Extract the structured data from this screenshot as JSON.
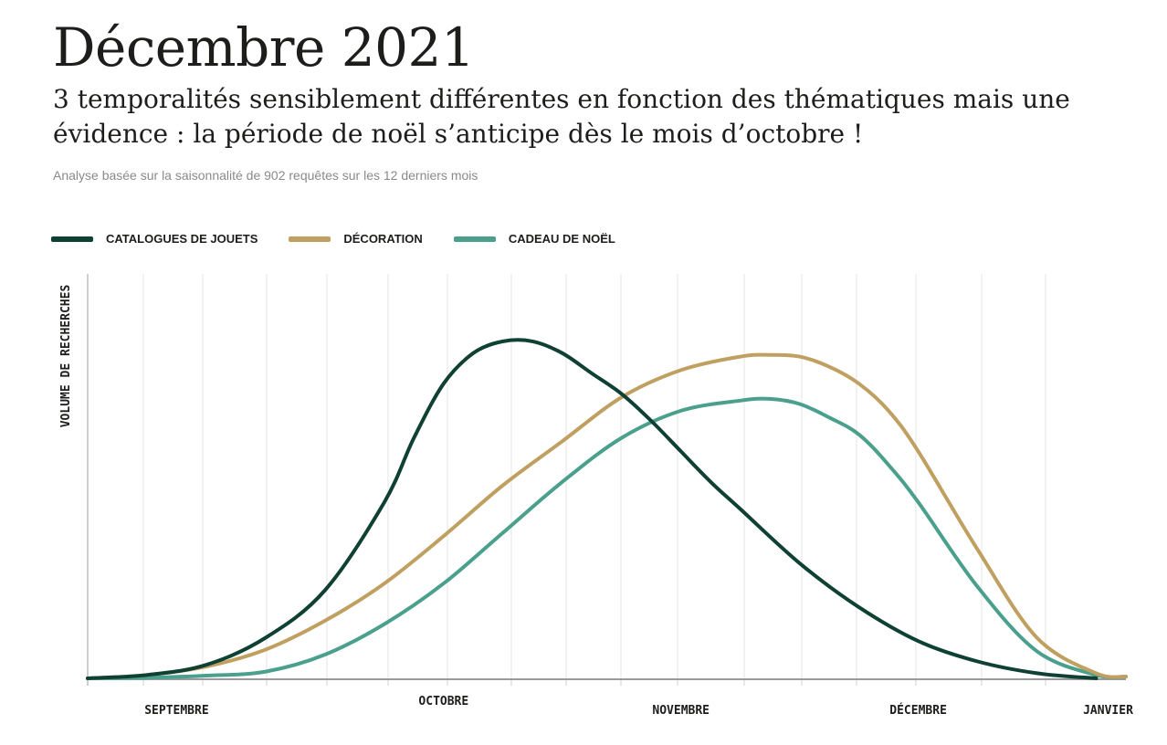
{
  "header": {
    "title": "Décembre 2021",
    "subtitle": "3 temporalités sensiblement différentes en fonction des thématiques mais une évidence : la période de noël s’anticipe dès le mois d’octobre !",
    "source": "Analyse basée sur la saisonnalité de 902 requêtes sur les 12 derniers mois"
  },
  "chart_data": {
    "type": "line",
    "ylabel": "VOLUME DE RECHERCHES",
    "xlabel": "",
    "x_unit": "weeks (0 = early September, 4 weeks per month)",
    "xlim": [
      0,
      17.5
    ],
    "ylim": [
      0,
      100
    ],
    "grid": "vertical",
    "legend_position": "top-left",
    "month_ticks": [
      {
        "label": "SEPTEMBRE",
        "x": 1.5
      },
      {
        "label": "OCTOBRE",
        "x": 6
      },
      {
        "label": "NOVEMBRE",
        "x": 10
      },
      {
        "label": "DÉCEMBRE",
        "x": 14
      },
      {
        "label": "JANVIER",
        "x": 17.2
      }
    ],
    "series": [
      {
        "name": "CATALOGUES DE JOUETS",
        "color": "#0e4034",
        "x": [
          0,
          1,
          2,
          3,
          4,
          5,
          5.5,
          6,
          6.5,
          7,
          7.5,
          8,
          8.5,
          9,
          9.5,
          10,
          10.5,
          11,
          12,
          13,
          14,
          15,
          16,
          17
        ],
        "y": [
          0,
          1,
          4,
          12,
          26,
          52,
          71,
          87,
          96,
          99.5,
          99.5,
          96,
          90,
          84,
          76,
          67,
          58,
          50,
          34,
          21,
          11,
          5,
          1.5,
          0
        ]
      },
      {
        "name": "DÉCORATION",
        "color": "#c0a060",
        "x": [
          0,
          1,
          2,
          3,
          4,
          5,
          6,
          7,
          8,
          9,
          10,
          11,
          11.5,
          12,
          12.5,
          13,
          13.5,
          14,
          15,
          16,
          17,
          17.5
        ],
        "y": [
          0,
          1,
          3.5,
          8.5,
          17,
          28,
          42,
          57,
          70,
          83,
          91,
          95,
          95.5,
          95,
          92,
          87,
          79,
          67,
          38,
          12,
          1.5,
          0.5
        ]
      },
      {
        "name": "CADEAU DE NOËL",
        "color": "#4aa08c",
        "x": [
          0,
          1,
          2,
          3,
          4,
          5,
          6,
          7,
          8,
          9,
          10,
          11,
          11.5,
          12,
          12.5,
          13,
          13.5,
          14,
          15,
          16,
          17,
          17.5
        ],
        "y": [
          0,
          0.2,
          0.8,
          2,
          7,
          16,
          28,
          43,
          58,
          71,
          79,
          82,
          82.5,
          81,
          77,
          72,
          63,
          52,
          27,
          8,
          1,
          0.5
        ]
      }
    ]
  }
}
